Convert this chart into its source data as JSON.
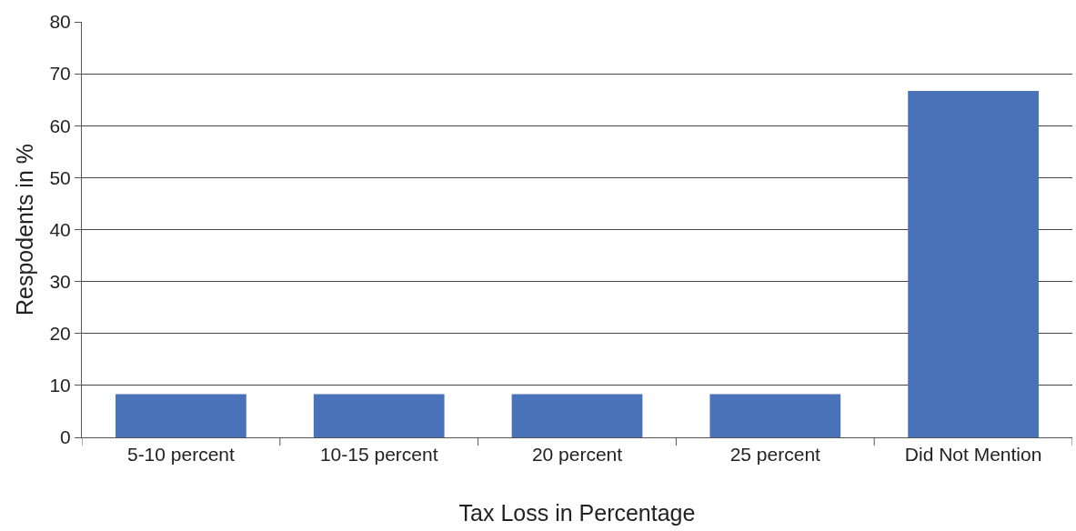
{
  "chart_data": {
    "type": "bar",
    "xlabel": "Tax Loss in Percentage",
    "ylabel": "Respodents in %",
    "categories": [
      "5-10 percent",
      "10-15 percent",
      "20 percent",
      "25 percent",
      "Did Not Mention"
    ],
    "values": [
      8.3,
      8.3,
      8.3,
      8.3,
      66.7
    ],
    "color": "#4a72b8",
    "ylim": [
      0,
      80
    ],
    "yticks": [
      0,
      10,
      20,
      30,
      40,
      50,
      60,
      70,
      80
    ],
    "grid": "y",
    "legend": false
  }
}
